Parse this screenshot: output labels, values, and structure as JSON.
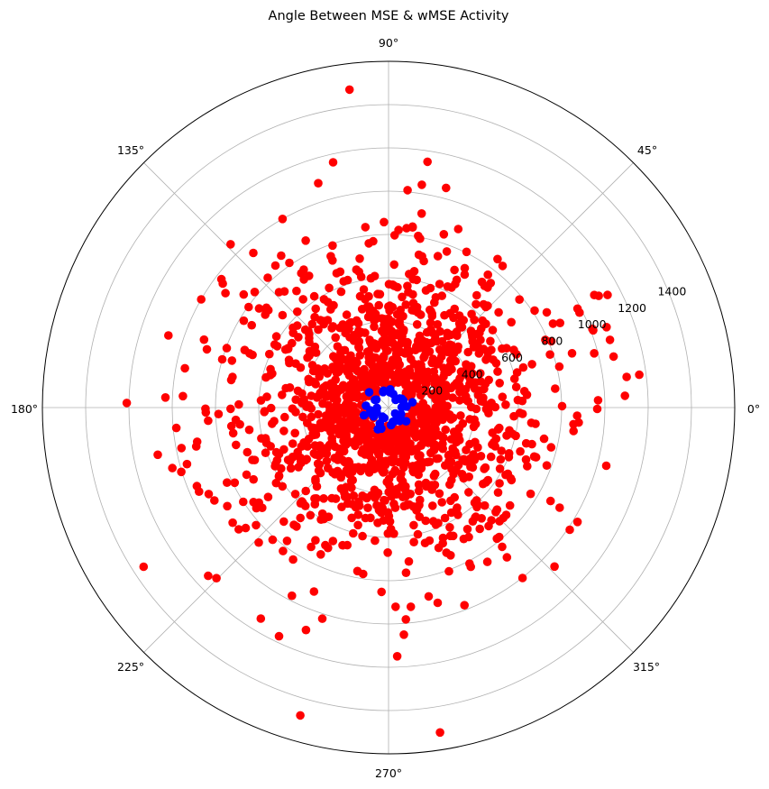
{
  "chart_data": {
    "type": "scatter",
    "projection": "polar",
    "title": "Angle Between MSE & wMSE Activity",
    "angle_unit": "degrees",
    "angle_ticks": [
      "0°",
      "45°",
      "90°",
      "135°",
      "180°",
      "225°",
      "270°",
      "315°"
    ],
    "radial_ticks": [
      200,
      400,
      600,
      800,
      1000,
      1200,
      1400
    ],
    "radial_tick_labels": [
      "200",
      "400",
      "600",
      "800",
      "1000",
      "1200",
      "1400"
    ],
    "rlim": [
      0,
      1600
    ],
    "grid": true,
    "legend": "none",
    "series": [
      {
        "color": "#ff0000",
        "marker": "circle",
        "n_points": 1500,
        "r_range": [
          70,
          1500
        ],
        "points_sample": [
          {
            "theta": 97,
            "r": 1480
          },
          {
            "theta": 81,
            "r": 1150
          },
          {
            "theta": 179,
            "r": 1210
          },
          {
            "theta": 213,
            "r": 1350
          },
          {
            "theta": 254,
            "r": 1480
          },
          {
            "theta": 279,
            "r": 1520
          },
          {
            "theta": 326,
            "r": 1010
          },
          {
            "theta": 17,
            "r": 1070
          },
          {
            "theta": 28,
            "r": 1100
          },
          {
            "theta": 223,
            "r": 1140
          },
          {
            "theta": 272,
            "r": 1150
          },
          {
            "theta": 150,
            "r": 1000
          }
        ]
      },
      {
        "color": "#0000ff",
        "marker": "circle",
        "n_points": 40,
        "r_range": [
          40,
          120
        ]
      }
    ]
  }
}
